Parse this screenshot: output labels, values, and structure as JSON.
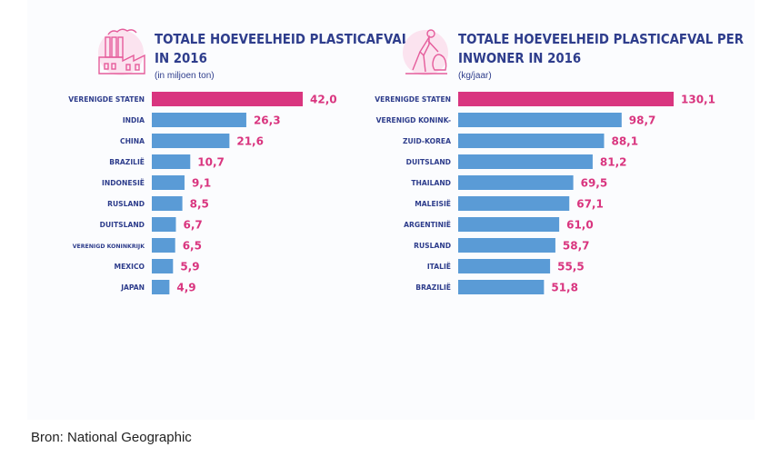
{
  "colors": {
    "highlight": "#d9357f",
    "bar": "#5a9bd6",
    "title": "#2e3d8c",
    "label": "#2e3d8c",
    "value": "#d9357f",
    "icon": "#e55c9b"
  },
  "icons": {
    "left": "factory-icon",
    "right": "person-with-trash-bag-icon"
  },
  "chart_data": [
    {
      "type": "bar",
      "title": "TOTALE HOEVEELHEID PLASTICAFVAL IN 2016",
      "title_lines": [
        "TOTALE HOEVEELHEID PLASTICAFVAL",
        "IN 2016"
      ],
      "subtitle": "(in miljoen ton)",
      "orientation": "horizontal",
      "categories": [
        "VERENIGDE STATEN",
        "INDIA",
        "CHINA",
        "BRAZILIË",
        "INDONESIË",
        "RUSLAND",
        "DUITSLAND",
        "VERENIGD KONINKRIJK",
        "MEXICO",
        "JAPAN"
      ],
      "values": [
        42.0,
        26.3,
        21.6,
        10.7,
        9.1,
        8.5,
        6.7,
        6.5,
        5.9,
        4.9
      ],
      "value_labels": [
        "42,0",
        "26,3",
        "21,6",
        "10,7",
        "9,1",
        "8,5",
        "6,7",
        "6,5",
        "5,9",
        "4,9"
      ],
      "highlight_index": 0,
      "xlim": [
        0,
        42.0
      ],
      "grid": false
    },
    {
      "type": "bar",
      "title": "TOTALE HOEVEELHEID PLASTICAFVAL PER INWONER IN 2016",
      "title_lines": [
        "TOTALE HOEVEELHEID PLASTICAFVAL PER",
        "INWONER IN 2016"
      ],
      "subtitle": "(kg/jaar)",
      "orientation": "horizontal",
      "categories": [
        "VERENIGDE STATEN",
        "VERENIGD KONINK-",
        "ZUID-KOREA",
        "DUITSLAND",
        "THAILAND",
        "MALEISIË",
        "ARGENTINIË",
        "RUSLAND",
        "ITALIË",
        "BRAZILIË"
      ],
      "values": [
        130.1,
        98.7,
        88.1,
        81.2,
        69.5,
        67.1,
        61.0,
        58.7,
        55.5,
        51.8
      ],
      "value_labels": [
        "130,1",
        "98,7",
        "88,1",
        "81,2",
        "69,5",
        "67,1",
        "61,0",
        "58,7",
        "55,5",
        "51,8"
      ],
      "highlight_index": 0,
      "xlim": [
        0,
        130.1
      ],
      "grid": false
    }
  ],
  "source": "Bron: National Geographic"
}
